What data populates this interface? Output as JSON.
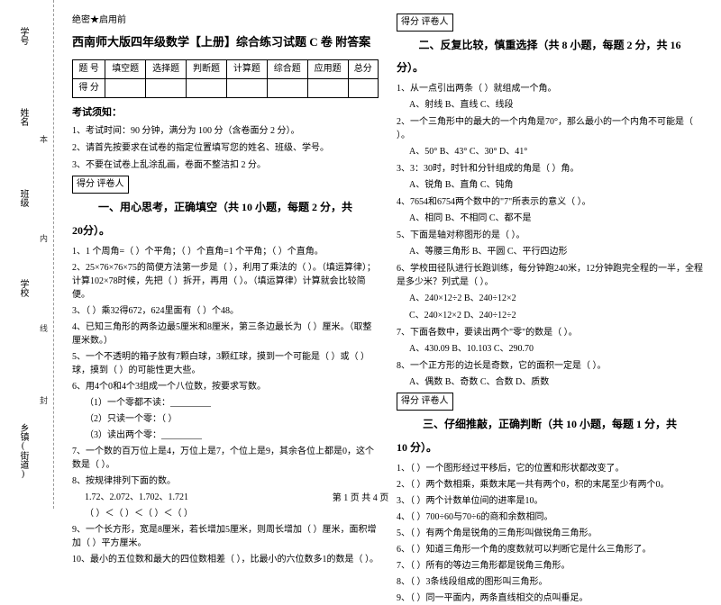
{
  "margin": {
    "labels": [
      "学号",
      "姓名",
      "班级",
      "学校",
      "乡镇(街道)"
    ],
    "hints": [
      "本",
      "内",
      "线",
      "封"
    ]
  },
  "secret": "绝密★启用前",
  "title": "西南师大版四年级数学【上册】综合练习试题 C 卷 附答案",
  "scoreTable": {
    "headers": [
      "题 号",
      "填空题",
      "选择题",
      "判断题",
      "计算题",
      "综合题",
      "应用题",
      "总分"
    ],
    "row2": "得 分"
  },
  "notice": {
    "head": "考试须知：",
    "items": [
      "1、考试时间：90 分钟，满分为 100 分（含卷面分 2 分）。",
      "2、请首先按要求在试卷的指定位置填写您的姓名、班级、学号。",
      "3、不要在试卷上乱涂乱画，卷面不整洁扣 2 分。"
    ]
  },
  "scoreBox": "得分  评卷人",
  "sec1": {
    "title": "一、用心思考，正确填空（共 10 小题，每题 2 分，共",
    "cont": "20分）。",
    "q1": "1、1 个周角=（    ）个平角；（    ）个直角=1 个平角；（    ）个直角。",
    "q2": "2、25×76×76×75的简便方法第一步是（          ），利用了乘法的（    ）。（填运算律）；计算102×78时候，先把（    ）拆开，再用（    ）。（填运算律）计算就会比较简便。",
    "q3": "3、（    ）乘32得672，624里面有（    ）个48。",
    "q4": "4、已知三角形的两条边最5厘米和8厘米，第三条边最长为（    ）厘米。（取整厘米数。）",
    "q5": "5、一个不透明的箱子放有7颗白球，3颗红球，摸到一个可能是（    ）或（    ）球，摸到（    ）的可能性更大些。",
    "q6": "6、用4个0和4个3组成一个八位数，按要求写数。",
    "q6a": "（1）一个零都不读：_________",
    "q6b": "（2）只读一个零：（          ）",
    "q6c": "（3）读出两个零：_________",
    "q7": "7、一个数的百万位上是4，万位上是7，个位上是9，其余各位上都是0，这个数是（        ）。",
    "q8": "8、按规律排列下面的数。",
    "q8a": "1.72、2.072、1.702、1.721",
    "q8b": "（   ）＜（   ）＜（   ）＜（   ）",
    "q9": "9、一个长方形，宽是8厘米，若长增加5厘米，则周长增加（    ）厘米，面积增加（    ）平方厘米。",
    "q10": "10、最小的五位数和最大的四位数相差（    ），比最小的六位数多1的数是（    ）。"
  },
  "sec2": {
    "title": "二、反复比较，慎重选择（共 8 小题，每题 2 分，共 16",
    "cont": "分）。",
    "q1": "1、从一点引出两条（    ）就组成一个角。",
    "q1o": "A、射线          B、直线          C、线段",
    "q2": "2、一个三角形中的最大的一个内角是70°，那么最小的一个内角不可能是（    ）。",
    "q2o": "A、50°      B、43°      C、30°      D、41°",
    "q3": "3、3：30时，时针和分针组成的角是（    ）角。",
    "q3o": "A、锐角          B、直角          C、钝角",
    "q4": "4、7654和6754两个数中的\"7\"所表示的意义（    ）。",
    "q4o": "A、相同          B、不相同          C、都不是",
    "q5": "5、下面是轴对称图形的是（    ）。",
    "q5o": "A、等腰三角形      B、平圆      C、平行四边形",
    "q6": "6、学校田径队进行长跑训练，每分钟跑240米，12分钟跑完全程的一半，全程是多少米？列式是（    ）。",
    "q6o": "A、240×12÷2      B、240÷12×2",
    "q6o2": "C、240×12×2      D、240÷12÷2",
    "q7": "7、下面各数中，要读出两个\"零\"的数是（    ）。",
    "q7o": "A、430.09      B、10.103      C、290.70",
    "q8": "8、一个正方形的边长是奇数，它的面积一定是（    ）。",
    "q8o": "A、偶数      B、奇数      C、合数      D、质数"
  },
  "sec3": {
    "title": "三、仔细推敲，正确判断（共 10 小题，每题 1 分，共",
    "cont": "10 分）。",
    "q1": "1、（    ）一个图形经过平移后，它的位置和形状都改变了。",
    "q2": "2、（    ）两个数相乘，乘数末尾一共有两个0，积的末尾至少有两个0。",
    "q3": "3、（    ）两个计数单位间的进率是10。",
    "q4": "4、（    ）700÷60与70÷6的商和余数相同。",
    "q5": "5、（    ）有两个角是锐角的三角形叫做锐角三角形。",
    "q6": "6、（    ）知道三角形一个角的度数就可以判断它是什么三角形了。",
    "q7": "7、（    ）所有的等边三角形都是锐角三角形。",
    "q8": "8、（    ）3条线段组成的图形叫三角形。",
    "q9": "9、（    ）同一平面内，两条直线相交的点叫垂足。"
  },
  "footer": "第 1 页 共 4 页"
}
